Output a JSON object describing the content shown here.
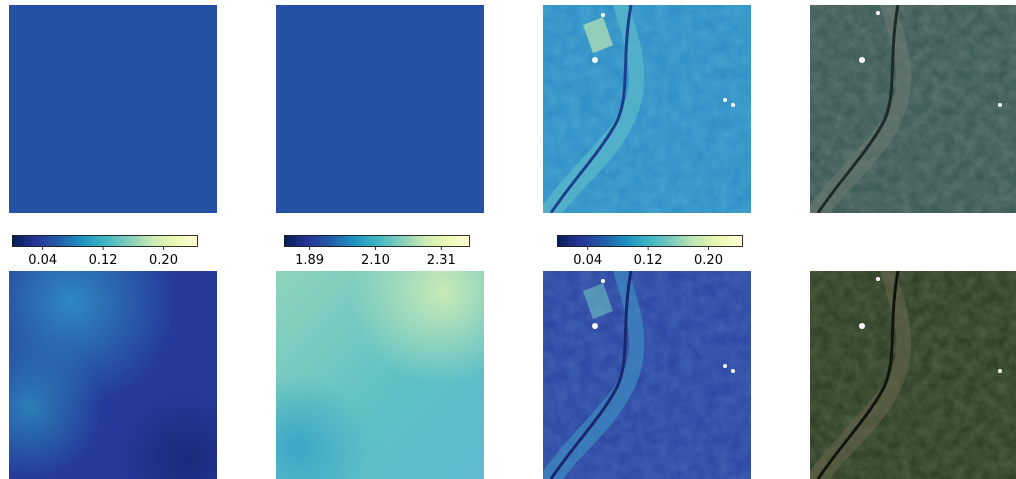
{
  "chart_data": {
    "type": "heatmap",
    "colormap": "YlGnBu",
    "colorbars": [
      {
        "id": "col1",
        "tick_labels": [
          "0.04",
          "0.12",
          "0.20"
        ],
        "ticks": [
          0.04,
          0.12,
          0.2
        ],
        "range": [
          0.0,
          0.245
        ]
      },
      {
        "id": "col2",
        "tick_labels": [
          "1.89",
          "2.10",
          "2.31"
        ],
        "ticks": [
          1.89,
          2.1,
          2.31
        ],
        "range": [
          1.81,
          2.4
        ]
      },
      {
        "id": "col3",
        "tick_labels": [
          "0.04",
          "0.12",
          "0.20"
        ],
        "ticks": [
          0.04,
          0.12,
          0.2
        ],
        "range": [
          0.0,
          0.245
        ]
      }
    ],
    "panels": [
      {
        "row": 1,
        "col": 1,
        "kind": "uniform-map",
        "fill_color": "#2451a4"
      },
      {
        "row": 1,
        "col": 2,
        "kind": "uniform-map",
        "fill_color": "#2451a4"
      },
      {
        "row": 1,
        "col": 3,
        "kind": "satellite-index-map",
        "palette": [
          "#1f6fb2",
          "#35a3c9",
          "#7fcdbb",
          "#c7e9b4"
        ]
      },
      {
        "row": 1,
        "col": 4,
        "kind": "satellite-rgb",
        "palette": [
          "#33524f",
          "#46615c",
          "#7f8a80",
          "#22302f"
        ]
      },
      {
        "row": 2,
        "col": 1,
        "kind": "smooth-field",
        "palette": [
          "#253494",
          "#2c5fa8",
          "#2f89c0",
          "#1d3a8a"
        ]
      },
      {
        "row": 2,
        "col": 2,
        "kind": "smooth-field",
        "palette": [
          "#7fcdbb",
          "#41b6c4",
          "#a8dcb6",
          "#c7e9b4"
        ]
      },
      {
        "row": 2,
        "col": 3,
        "kind": "satellite-index-map",
        "palette": [
          "#253494",
          "#2c4fa8",
          "#2f89c0",
          "#7fcdbb"
        ]
      },
      {
        "row": 2,
        "col": 4,
        "kind": "satellite-rgb",
        "palette": [
          "#24351e",
          "#3a4a2d",
          "#7d7a62",
          "#141d14"
        ]
      }
    ]
  }
}
